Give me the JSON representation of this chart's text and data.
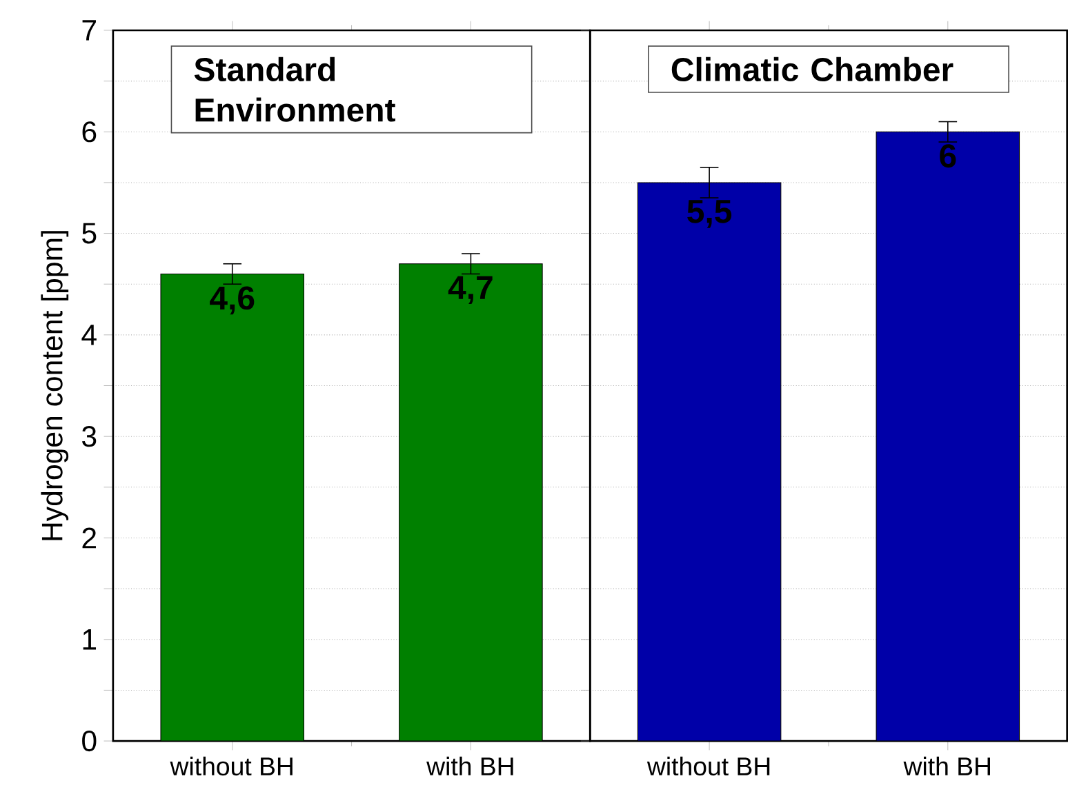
{
  "chart_data": [
    {
      "type": "bar",
      "ylabel": "Hydrogen content [ppm]",
      "categories": [
        "without BH",
        "with BH"
      ],
      "values": [
        4.6,
        4.7
      ],
      "errors": [
        0.1,
        0.1
      ],
      "colors": [
        "#008000",
        "#008000"
      ],
      "value_labels": [
        "4,6",
        "4,7"
      ],
      "ylim": [
        0,
        7
      ],
      "yticks": [
        0,
        {
          "value": 0.5,
          "label": null
        },
        1,
        {
          "value": 1.5,
          "label": null
        },
        2,
        {
          "value": 2.5,
          "label": null
        },
        3,
        {
          "value": 3.5,
          "label": null
        },
        4,
        {
          "value": 4.5,
          "label": null
        },
        5,
        {
          "value": 5.5,
          "label": null
        },
        6,
        {
          "value": 6.5,
          "label": null
        },
        7
      ],
      "grid": "y",
      "annotations": [
        "Standard Environment"
      ]
    },
    {
      "type": "bar",
      "categories": [
        "without BH",
        "with BH"
      ],
      "values": [
        5.5,
        6
      ],
      "errors": [
        0.15,
        0.1
      ],
      "colors": [
        "#0000a8",
        "#0000a8"
      ],
      "value_labels": [
        "5,5",
        "6"
      ],
      "ylim": [
        0,
        7
      ],
      "yticks": [
        0,
        {
          "value": 0.5,
          "label": null
        },
        1,
        {
          "value": 1.5,
          "label": null
        },
        2,
        {
          "value": 2.5,
          "label": null
        },
        3,
        {
          "value": 3.5,
          "label": null
        },
        4,
        {
          "value": 4.5,
          "label": null
        },
        5,
        {
          "value": 5.5,
          "label": null
        },
        6,
        {
          "value": 6.5,
          "label": null
        },
        7
      ],
      "grid": "y",
      "tick_labels": "x",
      "annotations": [
        "Climatic Chamber"
      ]
    }
  ]
}
